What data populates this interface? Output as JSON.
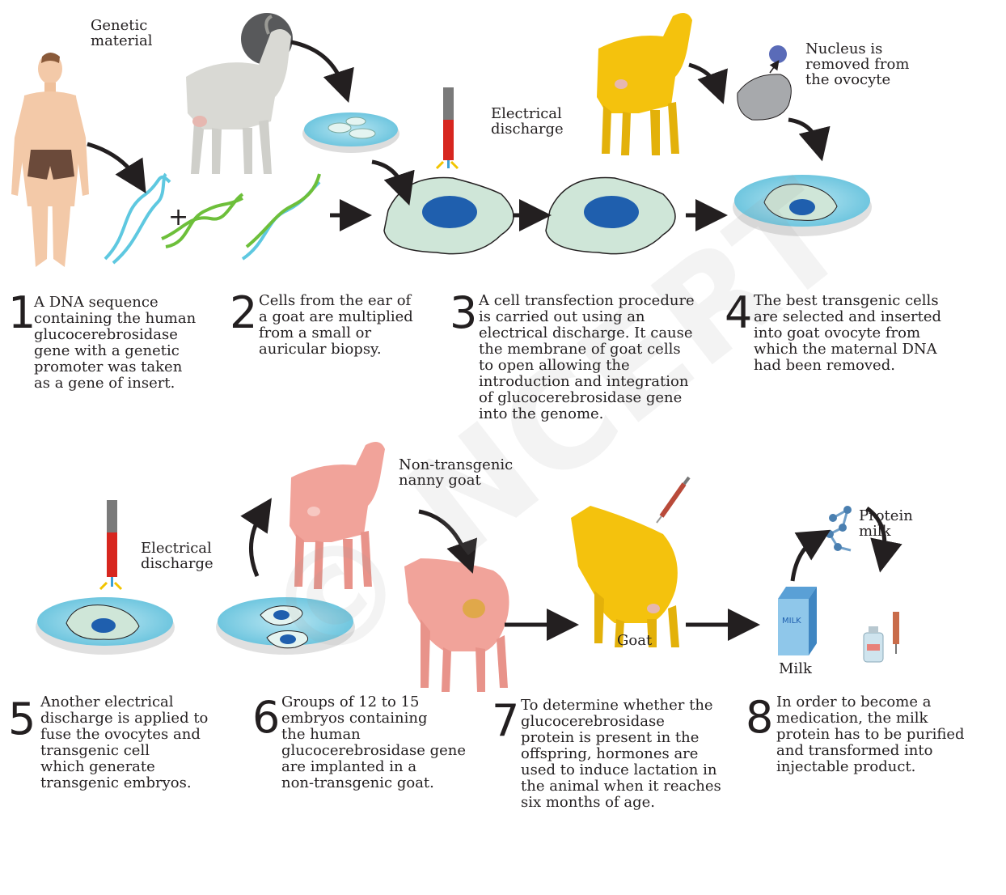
{
  "labels": {
    "genetic_material": "Genetic\nmaterial",
    "electrical_discharge_top": "Electrical\ndischarge",
    "nucleus_removed": "Nucleus is\nremoved from\nthe ovocyte",
    "non_transgenic": "Non-transgenic\nnanny goat",
    "electrical_discharge_bottom": "Electrical\ndischarge",
    "protein_milk": "Protein\nmilk",
    "goat": "Goat",
    "milk": "Milk",
    "milk_carton": "MILK"
  },
  "steps": [
    {
      "num": "1",
      "lines": [
        "A DNA sequence",
        "containing the human",
        "glucocerebrosidase",
        "gene with a genetic",
        "promoter was taken",
        "as a gene of insert."
      ]
    },
    {
      "num": "2",
      "lines": [
        "Cells from the ear of",
        "a goat are multiplied",
        "from a small or",
        "auricular biopsy."
      ]
    },
    {
      "num": "3",
      "lines": [
        "A cell transfection procedure",
        "is carried out using an",
        "electrical discharge. It cause",
        "the membrane of goat cells",
        "to open allowing the",
        "introduction and integration",
        "of glucocerebrosidase gene",
        "into the genome."
      ]
    },
    {
      "num": "4",
      "lines": [
        "The best transgenic cells",
        "are selected and inserted",
        "into goat ovocyte from",
        "which the maternal DNA",
        "had been removed."
      ]
    },
    {
      "num": "5",
      "lines": [
        "Another electrical",
        "discharge is applied to",
        "fuse the ovocytes and",
        "transgenic cell",
        "which generate",
        "transgenic embryos."
      ]
    },
    {
      "num": "6",
      "lines": [
        "Groups of 12 to 15",
        "embryos containing",
        "the human",
        "glucocerebrosidase gene",
        "are implanted in a",
        "non-transgenic goat."
      ]
    },
    {
      "num": "7",
      "lines": [
        "To determine whether the",
        "glucocerebrosidase",
        "protein is present in the",
        "offspring, hormones are",
        "used to induce lactation in",
        "the animal when it reaches",
        "six months of age."
      ]
    },
    {
      "num": "8",
      "lines": [
        "In order to become a",
        "medication, the milk",
        "protein has to be purified",
        "and transformed into",
        "injectable product."
      ]
    }
  ],
  "colors": {
    "text": "#231f20",
    "arrow": "#231f20",
    "cell_fill": "#cfe6d8",
    "nucleus": "#1f5fae",
    "dish_water": "#7fd0e6",
    "dna_blue": "#5ec8e0",
    "dna_green": "#6dbf3a",
    "goat_grey": "#d9d9d4",
    "goat_yellow": "#f4c20d",
    "goat_pink": "#f1a39a",
    "skin": "#f3c9a8"
  }
}
